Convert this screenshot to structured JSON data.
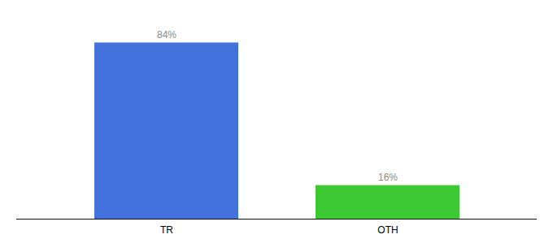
{
  "chart_data": {
    "type": "bar",
    "categories": [
      "TR",
      "OTH"
    ],
    "values": [
      84,
      16
    ],
    "value_labels": [
      "84%",
      "16%"
    ],
    "colors": [
      "#4472DD",
      "#3CC934"
    ],
    "ylim": [
      0,
      95
    ],
    "data_labels": true,
    "tick_labels": "x",
    "grid": false
  }
}
